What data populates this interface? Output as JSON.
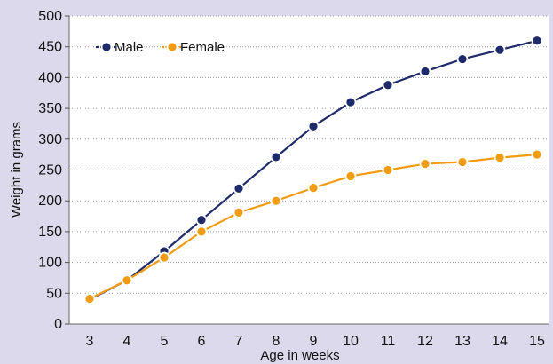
{
  "chart_data": {
    "type": "line",
    "x": [
      3,
      4,
      5,
      6,
      7,
      8,
      9,
      10,
      11,
      12,
      13,
      14,
      15
    ],
    "series": [
      {
        "name": "Male",
        "color": "#1f2a6b",
        "values": [
          40,
          71,
          118,
          169,
          220,
          271,
          321,
          360,
          388,
          410,
          430,
          445,
          460
        ]
      },
      {
        "name": "Female",
        "color": "#f39c12",
        "values": [
          41,
          71,
          108,
          150,
          181,
          200,
          221,
          240,
          250,
          260,
          263,
          270,
          275
        ]
      }
    ],
    "xlabel": "Age in weeks",
    "ylabel": "Weight in grams",
    "ylim": [
      0,
      500
    ],
    "yticks": [
      0,
      50,
      100,
      150,
      200,
      250,
      300,
      350,
      400,
      450,
      500
    ],
    "grid": "horizontal-dotted",
    "legend": "top-left"
  },
  "colors": {
    "background": "#dcd9ec",
    "plot_area": "#ffffff"
  }
}
